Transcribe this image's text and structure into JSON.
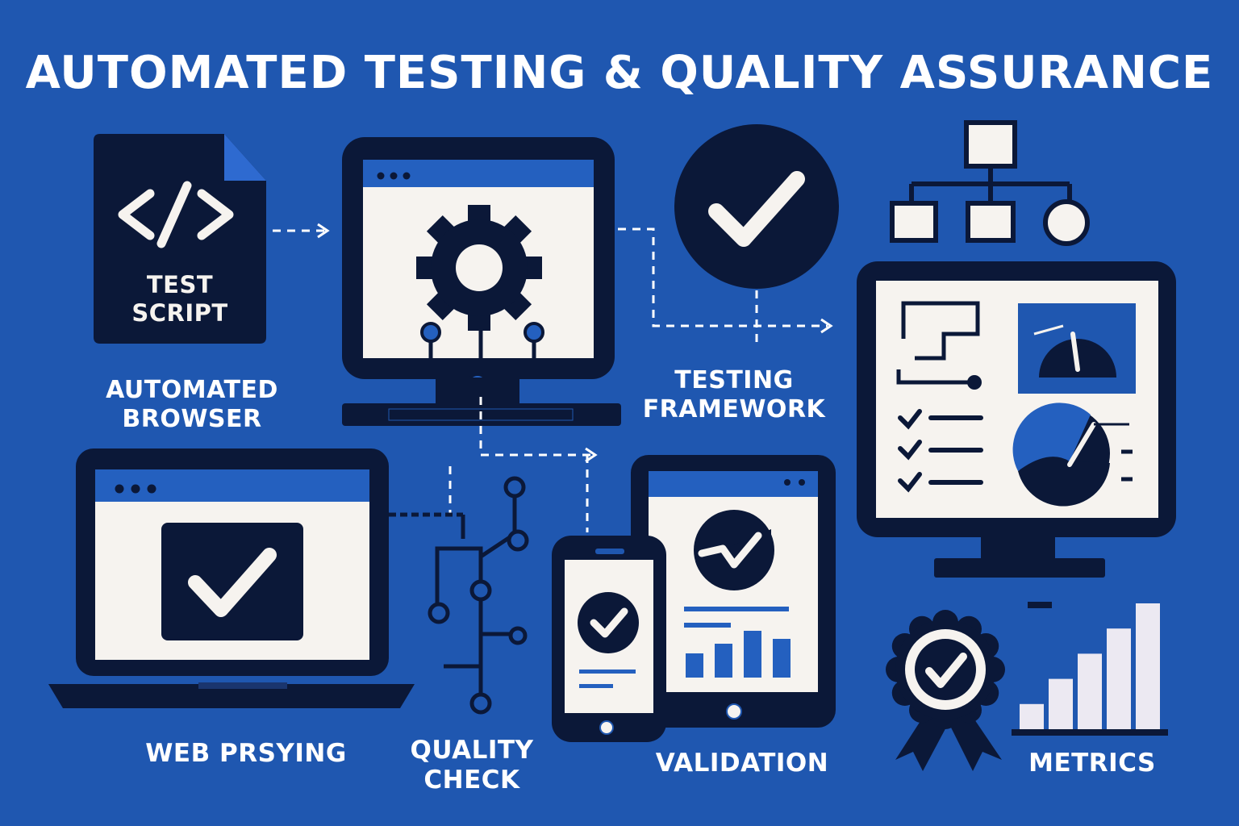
{
  "title": "AUTOMATED TESTING & QUALITY ASSURANCE",
  "labels": {
    "test_script_line1": "TEST",
    "test_script_line2": "SCRIPT",
    "automated_browser_line1": "AUTOMATED",
    "automated_browser_line2": "BROWSER",
    "testing_framework_line1": "TESTING",
    "testing_framework_line2": "FRAMEWORK",
    "web_testing": "WEB PRSYING",
    "quality_check_line1": "QUALITY",
    "quality_check_line2": "CHECK",
    "validation": "VALIDATION",
    "metrics": "METRICS"
  },
  "icons": {
    "test_script": "code-file-icon",
    "browser": "gear-monitor-icon",
    "framework": "check-circle-icon",
    "hierarchy": "hierarchy-icon",
    "dashboard": "dashboard-monitor-icon",
    "laptop": "laptop-check-icon",
    "circuit": "circuit-icon",
    "devices": "devices-icon",
    "badge": "badge-icon",
    "bar_chart": "bar-chart-icon"
  },
  "colors": {
    "background": "#1f57b0",
    "dark": "#0b1838",
    "light": "#f6f3ef",
    "accent": "#1f57b0",
    "bars": "#ece9f2"
  },
  "metrics_chart": {
    "values": [
      1,
      2,
      3,
      4,
      5
    ]
  }
}
